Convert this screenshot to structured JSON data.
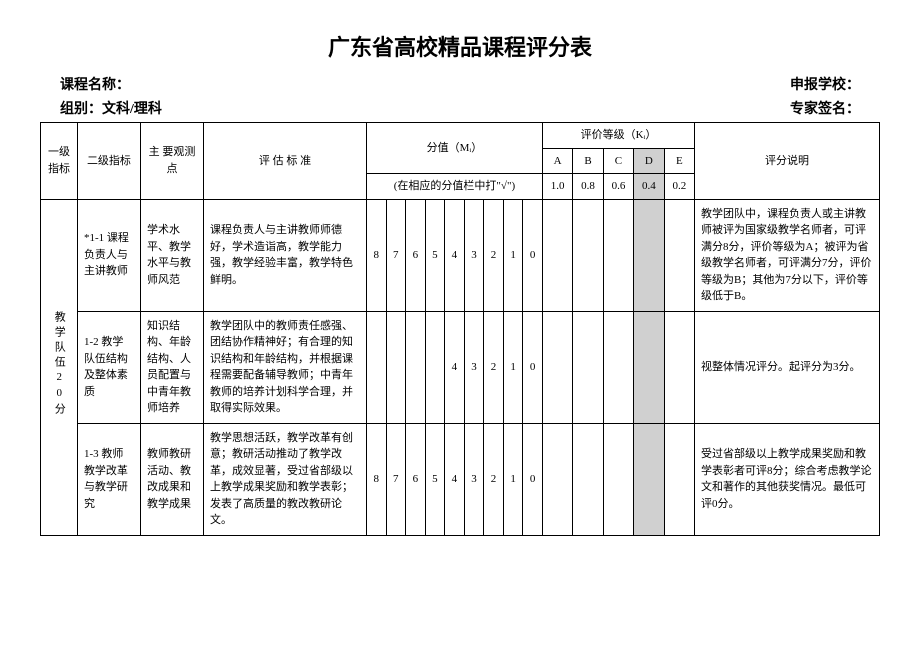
{
  "title": "广东省高校精品课程评分表",
  "meta": {
    "course_label": "课程名称：",
    "school_label": "申报学校：",
    "group_label": "组别：文科/理科",
    "expert_label": "专家签名："
  },
  "headers": {
    "l1": "一级指标",
    "l2": "二级指标",
    "obs": "主 要观测点",
    "std": "评 估 标 准",
    "score": "分值（Mᵢ）",
    "score_note": "(在相应的分值栏中打\"√\")",
    "grade": "评价等级（Kᵢ）",
    "explain": "评分说明",
    "grades": {
      "A": "A",
      "B": "B",
      "C": "C",
      "D": "D",
      "E": "E",
      "A_v": "1.0",
      "B_v": "0.8",
      "C_v": "0.6",
      "D_v": "0.4",
      "E_v": "0.2"
    }
  },
  "section": {
    "l1": "教学队伍20分",
    "rows": [
      {
        "l2": "*1-1 课程负责人与主讲教师",
        "obs": "学术水平、教学水平与教师风范",
        "std": "课程负责人与主讲教师师德好，学术造诣高，教学能力强，教学经验丰富，教学特色鲜明。",
        "scores": [
          "8",
          "7",
          "6",
          "5",
          "4",
          "3",
          "2",
          "1",
          "0"
        ],
        "explain": "教学团队中，课程负责人或主讲教师被评为国家级教学名师者，可评满分8分，评价等级为A；被评为省级教学名师者，可评满分7分，评价等级为B；其他为7分以下，评价等级低于B。"
      },
      {
        "l2": "1-2 教学队伍结构及整体素质",
        "obs": "知识结构、年龄结构、人员配置与中青年教师培养",
        "std": "教学团队中的教师责任感强、团结协作精神好；有合理的知识结构和年龄结构，并根据课程需要配备辅导教师；中青年教师的培养计划科学合理，并取得实际效果。",
        "scores": [
          "",
          "",
          "",
          "",
          "4",
          "3",
          "2",
          "1",
          "0"
        ],
        "explain": "视整体情况评分。起评分为3分。"
      },
      {
        "l2": "1-3 教师教学改革与教学研究",
        "obs": "教师教研活动、教改成果和教学成果",
        "std": "教学思想活跃，教学改革有创意；教研活动推动了教学改革，成效显著，受过省部级以上教学成果奖励和教学表彰；发表了高质量的教改教研论文。",
        "scores": [
          "8",
          "7",
          "6",
          "5",
          "4",
          "3",
          "2",
          "1",
          "0"
        ],
        "explain": "受过省部级以上教学成果奖励和教学表彰者可评8分；综合考虑教学论文和著作的其他获奖情况。最低可评0分。"
      }
    ]
  }
}
